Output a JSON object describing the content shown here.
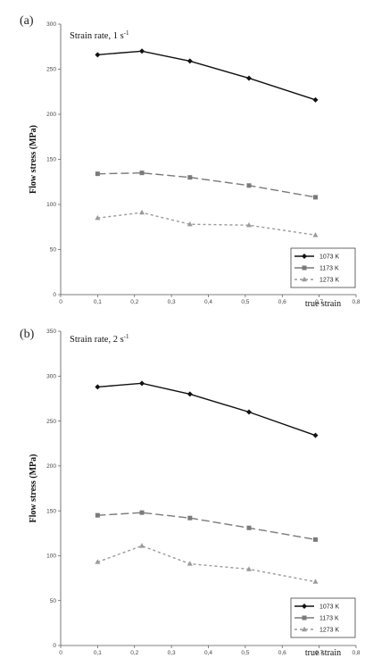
{
  "chart_data": [
    {
      "type": "line",
      "panel_label": "(a)",
      "title": "Strain rate, 1 s",
      "title_superscript": "-1",
      "xlabel": "true strain",
      "ylabel": "Flow stress (MPa)",
      "xlim": [
        0,
        0.8
      ],
      "ylim": [
        0,
        300
      ],
      "xticks": [
        0,
        0.1,
        0.2,
        0.3,
        0.4,
        0.5,
        0.6,
        0.7,
        0.8
      ],
      "yticks": [
        0,
        50,
        100,
        150,
        200,
        250,
        300
      ],
      "xtick_labels": [
        "0",
        "0,1",
        "0,2",
        "0,3",
        "0,4",
        "0,5",
        "0,6",
        "0,7",
        "0,8"
      ],
      "ytick_labels": [
        "0",
        "50",
        "100",
        "150",
        "200",
        "250",
        "300"
      ],
      "grid": false,
      "legend_position": "bottom-right",
      "series": [
        {
          "name": "1073 K",
          "color": "#111111",
          "marker": "diamond",
          "dash": "solid",
          "x": [
            0.1,
            0.22,
            0.35,
            0.51,
            0.69
          ],
          "values": [
            266,
            270,
            259,
            240,
            216
          ]
        },
        {
          "name": "1173 K",
          "color": "#7a7a7a",
          "marker": "square",
          "dash": "long-dash",
          "x": [
            0.1,
            0.22,
            0.35,
            0.51,
            0.69
          ],
          "values": [
            134,
            135,
            130,
            121,
            108
          ]
        },
        {
          "name": "1273 K",
          "color": "#9a9a9a",
          "marker": "triangle",
          "dash": "short-dash",
          "x": [
            0.1,
            0.22,
            0.35,
            0.51,
            0.69
          ],
          "values": [
            85,
            91,
            78,
            77,
            66
          ]
        }
      ]
    },
    {
      "type": "line",
      "panel_label": "(b)",
      "title": "Strain rate, 2 s",
      "title_superscript": "-1",
      "xlabel": "true strain",
      "ylabel": "Flow stress (MPa)",
      "xlim": [
        0,
        0.8
      ],
      "ylim": [
        0,
        350
      ],
      "xticks": [
        0,
        0.1,
        0.2,
        0.3,
        0.4,
        0.5,
        0.6,
        0.7,
        0.8
      ],
      "yticks": [
        0,
        50,
        100,
        150,
        200,
        250,
        300,
        350
      ],
      "xtick_labels": [
        "0",
        "0,1",
        "0,2",
        "0,3",
        "0,4",
        "0,5",
        "0,6",
        "0,7",
        "0,8"
      ],
      "ytick_labels": [
        "0",
        "50",
        "100",
        "150",
        "200",
        "250",
        "300",
        "350"
      ],
      "grid": false,
      "legend_position": "bottom-right",
      "series": [
        {
          "name": "1073 K",
          "color": "#111111",
          "marker": "diamond",
          "dash": "solid",
          "x": [
            0.1,
            0.22,
            0.35,
            0.51,
            0.69
          ],
          "values": [
            288,
            292,
            280,
            260,
            234
          ]
        },
        {
          "name": "1173 K",
          "color": "#7a7a7a",
          "marker": "square",
          "dash": "long-dash",
          "x": [
            0.1,
            0.22,
            0.35,
            0.51,
            0.69
          ],
          "values": [
            145,
            148,
            142,
            131,
            118
          ]
        },
        {
          "name": "1273 K",
          "color": "#9a9a9a",
          "marker": "triangle",
          "dash": "short-dash",
          "x": [
            0.1,
            0.22,
            0.35,
            0.51,
            0.69
          ],
          "values": [
            93,
            111,
            91,
            85,
            71
          ]
        }
      ]
    }
  ]
}
